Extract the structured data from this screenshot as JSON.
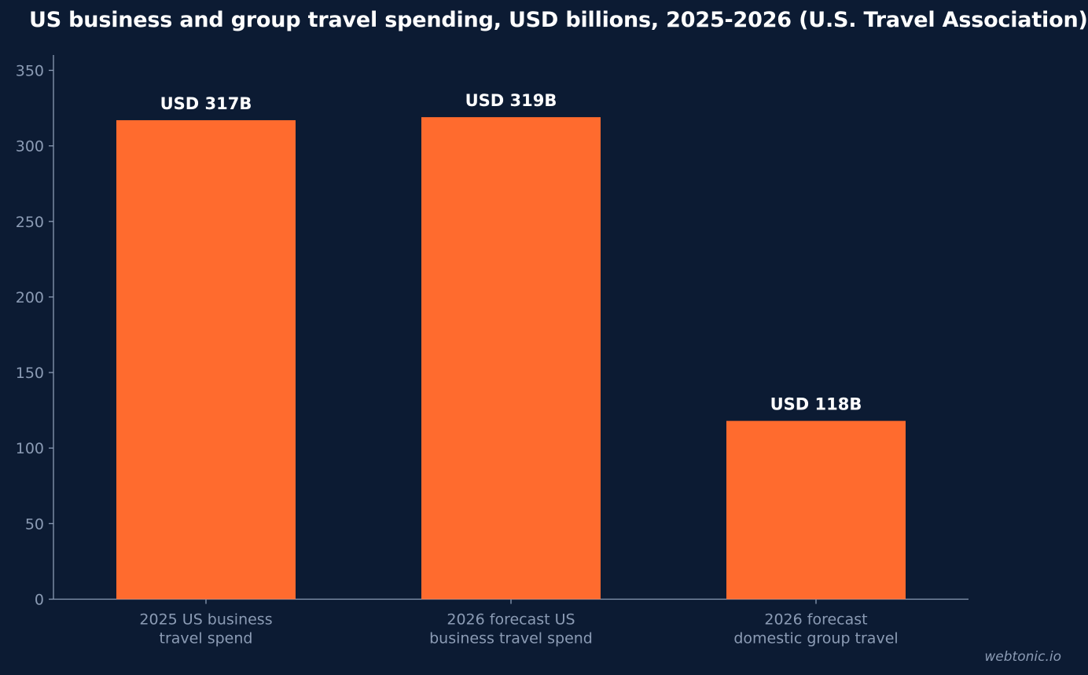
{
  "colors": {
    "background": "#0c1b33",
    "bar": "#ff6b2e",
    "axis": "#8b9bb4",
    "tick_text": "#8b9bb4",
    "label_text": "#ffffff",
    "title_text": "#ffffff"
  },
  "watermark": "webtonic.io",
  "chart_data": {
    "type": "bar",
    "title": "US business and group travel spending, USD billions, 2025-2026 (U.S. Travel Association)",
    "xlabel": "",
    "ylabel": "",
    "ylim": [
      0,
      360
    ],
    "yticks": [
      0,
      50,
      100,
      150,
      200,
      250,
      300,
      350
    ],
    "grid": false,
    "legend": "none",
    "categories": [
      [
        "2025 US business",
        "travel spend"
      ],
      [
        "2026 forecast US",
        "business travel spend"
      ],
      [
        "2026 forecast",
        "domestic group travel"
      ]
    ],
    "values": [
      317,
      319,
      118
    ],
    "data_labels": [
      "USD 317B",
      "USD 319B",
      "USD 118B"
    ]
  }
}
